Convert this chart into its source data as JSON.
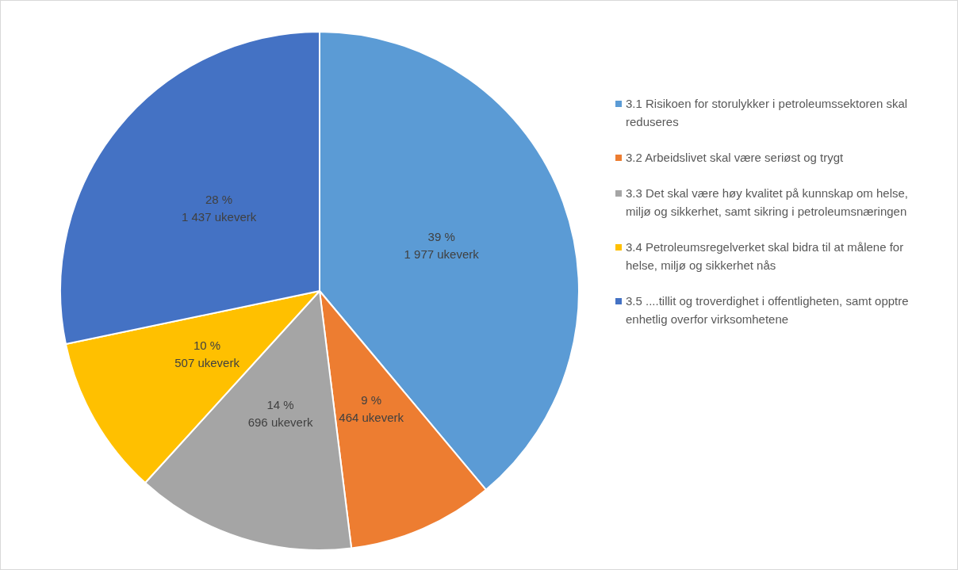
{
  "chart_data": {
    "type": "pie",
    "categories": [
      "3.1 Risikoen for storulykker i petroleumssektoren skal reduseres",
      "3.2 Arbeidslivet skal være seriøst og trygt",
      "3.3 Det skal være høy kvalitet på kunnskap om helse, miljø og sikkerhet, samt sikring i petroleumsnæringen",
      "3.4 Petroleumsregelverket skal bidra til at målene for helse, miljø og sikkerhet nås",
      "3.5 ....tillit og troverdighet i offentligheten, samt opptre enhetlig overfor virksomhetene"
    ],
    "values": [
      1977,
      464,
      696,
      507,
      1437
    ],
    "value_labels": [
      "39 %\n1 977 ukeverk",
      "9 %\n464 ukeverk",
      "14 %\n696 ukeverk",
      "10 %\n507 ukeverk",
      "28 %\n1 437 ukeverk"
    ],
    "colors": [
      "#5b9bd5",
      "#ed7d31",
      "#a5a5a5",
      "#ffc000",
      "#4472c4"
    ],
    "legend": "right"
  }
}
